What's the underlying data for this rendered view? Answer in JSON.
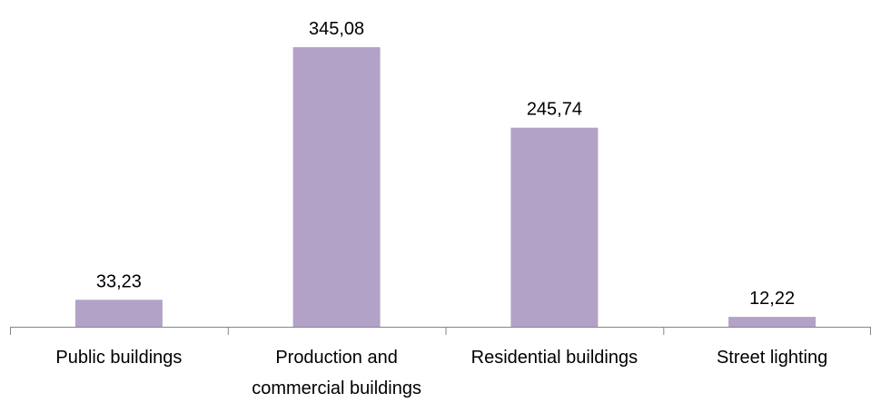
{
  "chart_data": {
    "type": "bar",
    "title": "",
    "xlabel": "",
    "ylabel": "",
    "categories": [
      [
        "Public buildings"
      ],
      [
        "Production and",
        "commercial buildings"
      ],
      [
        "Residential buildings"
      ],
      [
        "Street lighting"
      ]
    ],
    "values": [
      33.23,
      345.08,
      245.74,
      12.22
    ],
    "data_labels": [
      "33,23",
      "345,08",
      "245,74",
      "12,22"
    ],
    "ylim": [
      0,
      345.08
    ],
    "grid": false,
    "legend": "none",
    "bar_color": "#b3a2c7",
    "axis_color": "#868686"
  }
}
